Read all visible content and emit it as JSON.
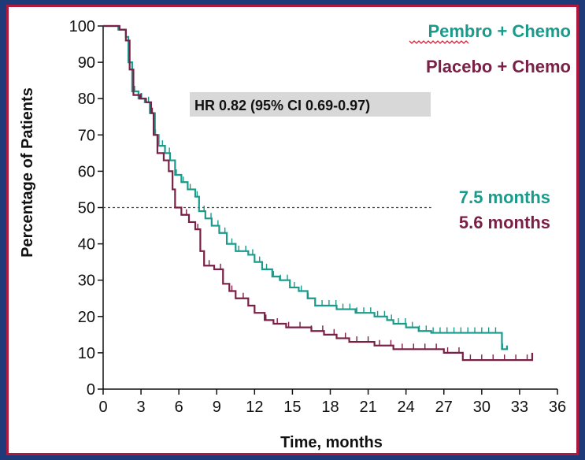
{
  "colors": {
    "pembro": "#1a9a8a",
    "placebo": "#7a1f45",
    "hr_box": "#d8d8d8",
    "frame": "#1f3a78",
    "border": "#b0183c"
  },
  "chart_data": {
    "type": "line",
    "subtype": "kaplan-meier step curve",
    "xlabel": "Time, months",
    "ylabel": "Percentage of Patients",
    "xlim": [
      0,
      36
    ],
    "ylim": [
      0,
      100
    ],
    "xticks": [
      0,
      3,
      6,
      9,
      12,
      15,
      18,
      21,
      24,
      27,
      30,
      33,
      36
    ],
    "yticks": [
      0,
      10,
      20,
      30,
      40,
      50,
      60,
      70,
      80,
      90,
      100
    ],
    "grid": false,
    "legend_placement": "top-right",
    "reference_line": {
      "y": 50,
      "style": "dashed",
      "x_range": [
        0,
        26
      ]
    },
    "annotation": "HR 0.82 (95% CI 0.69-0.97)",
    "series": [
      {
        "name": "Pembro + Chemo",
        "median_label": "7.5 months",
        "points": [
          [
            0,
            100
          ],
          [
            1.2,
            99
          ],
          [
            1.8,
            97
          ],
          [
            2.0,
            90
          ],
          [
            2.3,
            82
          ],
          [
            2.8,
            80
          ],
          [
            3.3,
            79
          ],
          [
            3.7,
            76
          ],
          [
            4.1,
            70
          ],
          [
            4.4,
            67
          ],
          [
            4.9,
            65
          ],
          [
            5.3,
            63
          ],
          [
            5.7,
            59
          ],
          [
            6.2,
            57
          ],
          [
            6.7,
            55
          ],
          [
            7.3,
            53
          ],
          [
            7.6,
            49
          ],
          [
            8.1,
            47
          ],
          [
            8.6,
            45
          ],
          [
            9.2,
            43
          ],
          [
            9.8,
            40
          ],
          [
            10.5,
            38
          ],
          [
            11.5,
            37
          ],
          [
            12.0,
            35
          ],
          [
            12.6,
            33
          ],
          [
            13.4,
            31
          ],
          [
            14.0,
            30
          ],
          [
            14.8,
            28
          ],
          [
            15.5,
            27
          ],
          [
            16.2,
            25
          ],
          [
            16.8,
            23
          ],
          [
            18.5,
            22
          ],
          [
            20.0,
            21
          ],
          [
            21.5,
            20
          ],
          [
            22.5,
            19
          ],
          [
            23.0,
            18
          ],
          [
            24.0,
            17
          ],
          [
            25.0,
            16
          ],
          [
            26.0,
            15.5
          ],
          [
            31.5,
            15.5
          ],
          [
            31.6,
            11
          ],
          [
            32.0,
            12
          ]
        ]
      },
      {
        "name": "Placebo + Chemo",
        "median_label": "5.6 months",
        "points": [
          [
            0,
            100
          ],
          [
            1.3,
            99
          ],
          [
            1.8,
            96
          ],
          [
            2.1,
            88
          ],
          [
            2.4,
            81
          ],
          [
            2.9,
            80
          ],
          [
            3.4,
            79
          ],
          [
            3.8,
            76
          ],
          [
            4.0,
            70
          ],
          [
            4.3,
            65
          ],
          [
            4.8,
            63
          ],
          [
            5.2,
            60
          ],
          [
            5.5,
            55
          ],
          [
            5.7,
            50
          ],
          [
            6.2,
            48
          ],
          [
            6.8,
            46
          ],
          [
            7.3,
            44
          ],
          [
            7.7,
            38
          ],
          [
            8.0,
            34
          ],
          [
            8.8,
            33
          ],
          [
            9.5,
            29
          ],
          [
            10.0,
            27
          ],
          [
            10.5,
            25
          ],
          [
            11.5,
            23
          ],
          [
            12.0,
            21
          ],
          [
            12.8,
            19
          ],
          [
            13.5,
            18
          ],
          [
            14.5,
            17
          ],
          [
            16.5,
            16
          ],
          [
            17.5,
            15
          ],
          [
            18.5,
            14
          ],
          [
            19.5,
            13
          ],
          [
            21.5,
            12
          ],
          [
            23.0,
            11
          ],
          [
            24.5,
            11
          ],
          [
            27.0,
            10
          ],
          [
            28.5,
            8
          ],
          [
            34.0,
            8
          ],
          [
            34.0,
            10
          ]
        ]
      }
    ]
  }
}
